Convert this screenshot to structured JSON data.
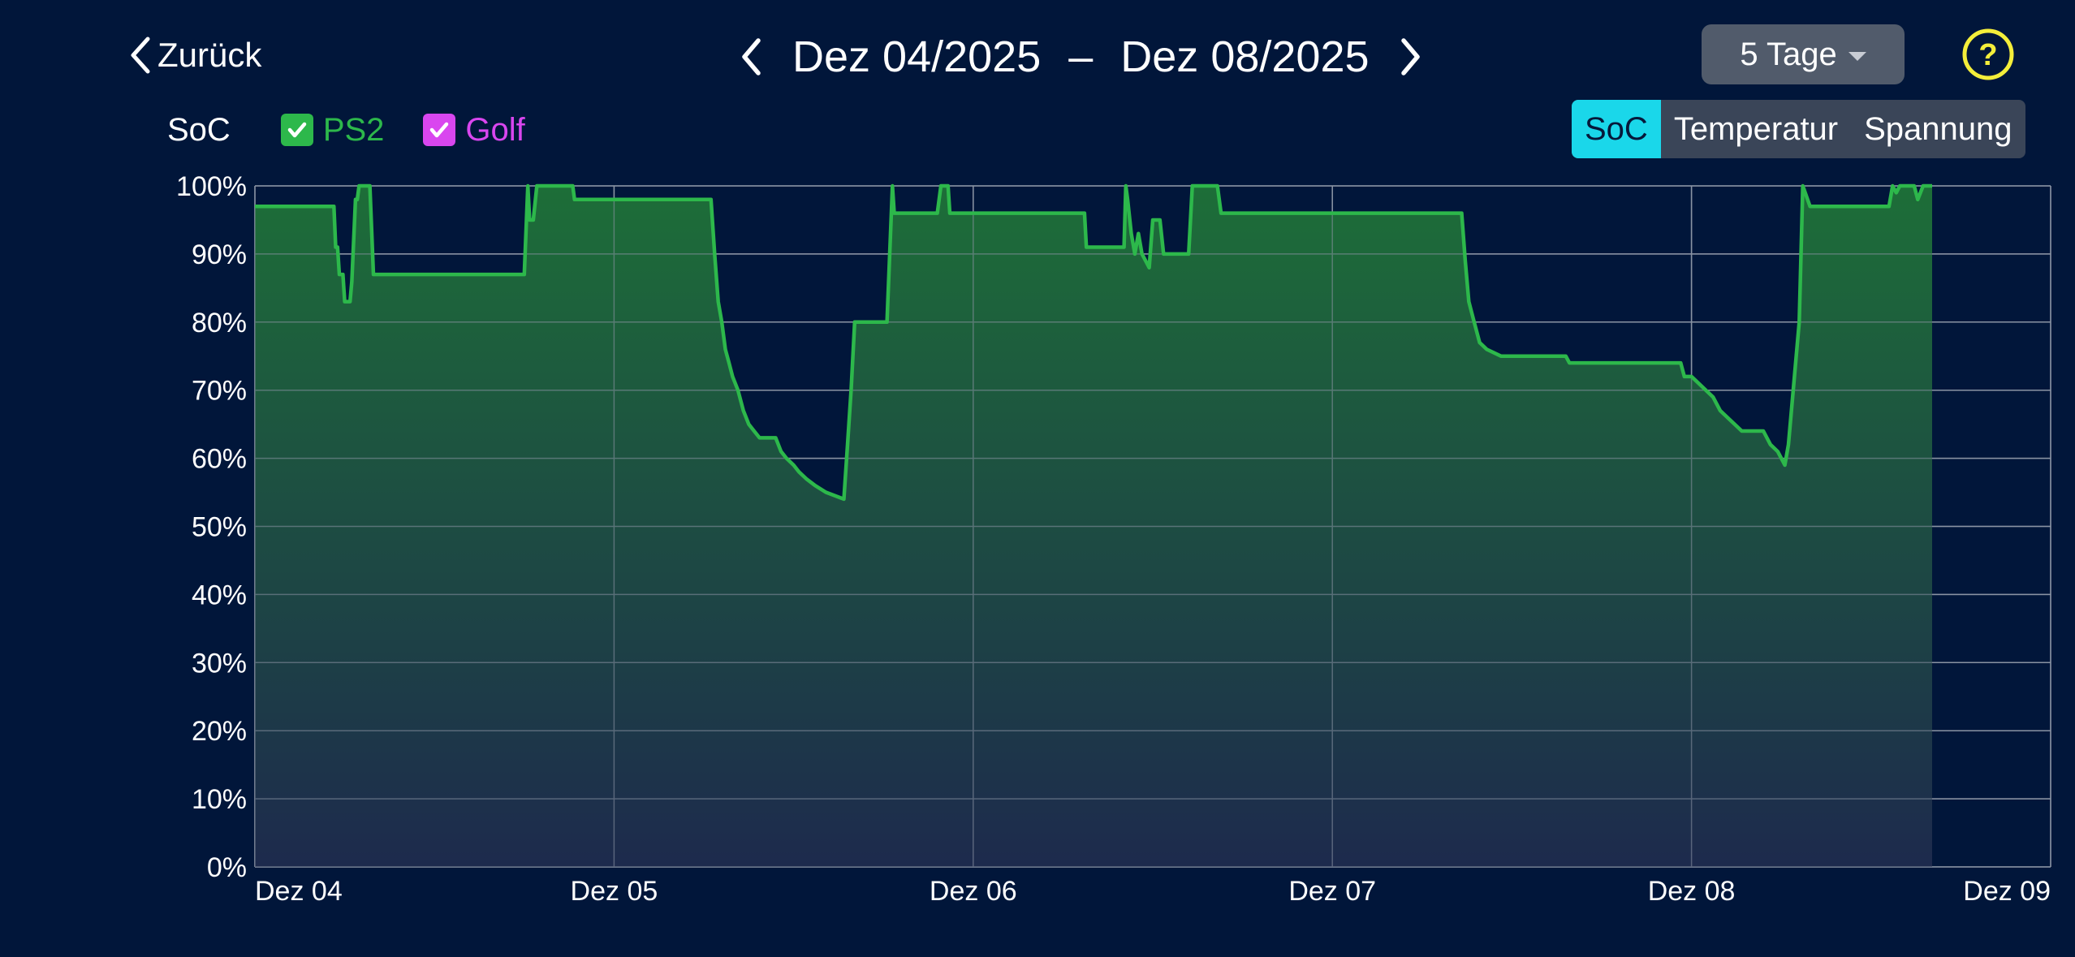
{
  "header": {
    "back_label": "Zurück",
    "date_start": "Dez 04/2025",
    "date_separator": "–",
    "date_end": "Dez 08/2025",
    "range_select": "5 Tage",
    "help_symbol": "?"
  },
  "legend": {
    "metric_label": "SoC",
    "items": [
      {
        "label": "PS2",
        "checked": true,
        "color": "#2db84b"
      },
      {
        "label": "Golf",
        "checked": true,
        "color": "#d946ef"
      }
    ]
  },
  "segmented": {
    "options": [
      "SoC",
      "Temperatur",
      "Spannung"
    ],
    "selected": "SoC",
    "accent_color": "#1ad7ea"
  },
  "chart_data": {
    "type": "line",
    "title": "",
    "xlabel": "",
    "ylabel": "",
    "x_tick_labels": [
      "Dez 04",
      "Dez 05",
      "Dez 06",
      "Dez 07",
      "Dez 08",
      "Dez 09"
    ],
    "y_tick_labels": [
      "0%",
      "10%",
      "20%",
      "30%",
      "40%",
      "50%",
      "60%",
      "70%",
      "80%",
      "90%",
      "100%"
    ],
    "xlim": [
      "Dez 04",
      "Dez 09"
    ],
    "ylim": [
      0,
      100
    ],
    "grid": true,
    "area_fill": true,
    "series": [
      {
        "name": "PS2",
        "color": "#2db84b",
        "points": [
          [
            0.0,
            97
          ],
          [
            0.22,
            97
          ],
          [
            0.225,
            91
          ],
          [
            0.23,
            91
          ],
          [
            0.235,
            87
          ],
          [
            0.245,
            87
          ],
          [
            0.25,
            83
          ],
          [
            0.265,
            83
          ],
          [
            0.27,
            86
          ],
          [
            0.28,
            98
          ],
          [
            0.285,
            98
          ],
          [
            0.29,
            100
          ],
          [
            0.32,
            100
          ],
          [
            0.33,
            87
          ],
          [
            0.4,
            87
          ],
          [
            0.75,
            87
          ],
          [
            0.76,
            100
          ],
          [
            0.765,
            95
          ],
          [
            0.775,
            95
          ],
          [
            0.785,
            100
          ],
          [
            0.885,
            100
          ],
          [
            0.89,
            98
          ],
          [
            1.0,
            98
          ],
          [
            1.27,
            98
          ],
          [
            1.28,
            90
          ],
          [
            1.29,
            83
          ],
          [
            1.3,
            80
          ],
          [
            1.31,
            76
          ],
          [
            1.32,
            74
          ],
          [
            1.33,
            72
          ],
          [
            1.345,
            70
          ],
          [
            1.36,
            67
          ],
          [
            1.375,
            65
          ],
          [
            1.39,
            64
          ],
          [
            1.405,
            63
          ],
          [
            1.45,
            63
          ],
          [
            1.465,
            61
          ],
          [
            1.48,
            60
          ],
          [
            1.5,
            59
          ],
          [
            1.515,
            58
          ],
          [
            1.535,
            57
          ],
          [
            1.56,
            56
          ],
          [
            1.59,
            55
          ],
          [
            1.64,
            54
          ],
          [
            1.65,
            62
          ],
          [
            1.66,
            70
          ],
          [
            1.67,
            80
          ],
          [
            1.76,
            80
          ],
          [
            1.775,
            100
          ],
          [
            1.78,
            96
          ],
          [
            1.9,
            96
          ],
          [
            1.91,
            100
          ],
          [
            1.93,
            100
          ],
          [
            1.935,
            96
          ],
          [
            2.0,
            96
          ],
          [
            2.31,
            96
          ],
          [
            2.315,
            91
          ],
          [
            2.42,
            91
          ],
          [
            2.425,
            100
          ],
          [
            2.43,
            98
          ],
          [
            2.44,
            93
          ],
          [
            2.45,
            90
          ],
          [
            2.46,
            93
          ],
          [
            2.47,
            90
          ],
          [
            2.48,
            89
          ],
          [
            2.49,
            88
          ],
          [
            2.5,
            95
          ],
          [
            2.52,
            95
          ],
          [
            2.53,
            90
          ],
          [
            2.6,
            90
          ],
          [
            2.61,
            100
          ],
          [
            2.68,
            100
          ],
          [
            2.69,
            96
          ],
          [
            3.0,
            96
          ],
          [
            3.36,
            96
          ],
          [
            3.37,
            89
          ],
          [
            3.38,
            83
          ],
          [
            3.395,
            80
          ],
          [
            3.41,
            77
          ],
          [
            3.43,
            76
          ],
          [
            3.47,
            75
          ],
          [
            3.65,
            75
          ],
          [
            3.66,
            74
          ],
          [
            3.97,
            74
          ],
          [
            3.98,
            72
          ],
          [
            4.0,
            72
          ],
          [
            4.02,
            71
          ],
          [
            4.04,
            70
          ],
          [
            4.06,
            69
          ],
          [
            4.08,
            67
          ],
          [
            4.1,
            66
          ],
          [
            4.12,
            65
          ],
          [
            4.14,
            64
          ],
          [
            4.2,
            64
          ],
          [
            4.22,
            62
          ],
          [
            4.24,
            61
          ],
          [
            4.25,
            60
          ],
          [
            4.26,
            59
          ],
          [
            4.27,
            62
          ],
          [
            4.3,
            80
          ],
          [
            4.31,
            100
          ],
          [
            4.33,
            97
          ],
          [
            4.55,
            97
          ],
          [
            4.56,
            100
          ],
          [
            4.57,
            99
          ],
          [
            4.58,
            100
          ],
          [
            4.62,
            100
          ],
          [
            4.63,
            98
          ],
          [
            4.645,
            100
          ],
          [
            4.67,
            100
          ]
        ]
      }
    ]
  }
}
